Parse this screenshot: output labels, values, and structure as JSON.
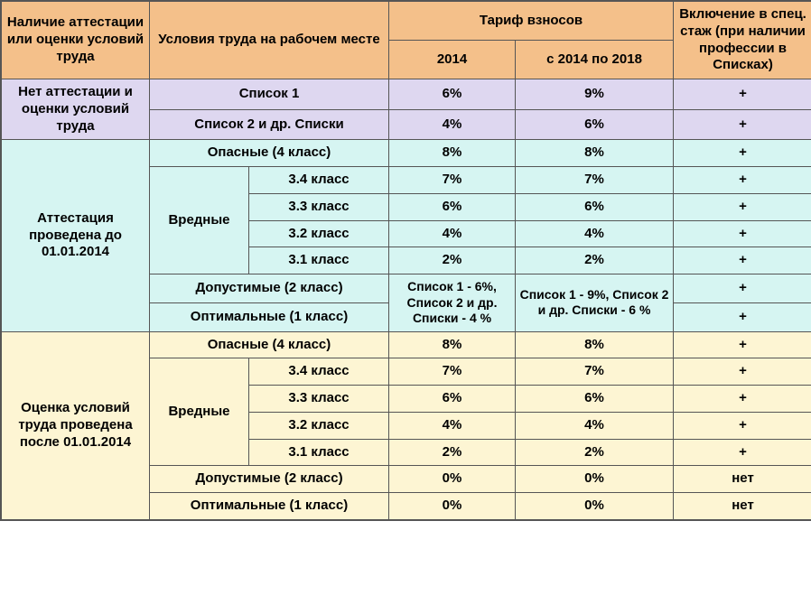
{
  "header": {
    "col1": "Наличие аттестации или оценки условий труда",
    "col2": "Условия труда на рабочем месте",
    "tariff_group": "Тариф взносов",
    "col3": "2014",
    "col4": "с 2014 по 2018",
    "col5": "Включение в спец. стаж (при наличии профессии в Списках)"
  },
  "sec1": {
    "label": "Нет аттестации и оценки условий труда",
    "rows": [
      {
        "cond": "Список 1",
        "t2014": "6%",
        "t2018": "9%",
        "inc": "+"
      },
      {
        "cond": "Список 2 и др. Списки",
        "t2014": "4%",
        "t2018": "6%",
        "inc": "+"
      }
    ]
  },
  "sec2": {
    "label": "Аттестация проведена до 01.01.2014",
    "dangerous": {
      "cond": "Опасные (4 класс)",
      "t2014": "8%",
      "t2018": "8%",
      "inc": "+"
    },
    "harmful_label": "Вредные",
    "harmful": [
      {
        "cls": "3.4 класс",
        "t2014": "7%",
        "t2018": "7%",
        "inc": "+"
      },
      {
        "cls": "3.3 класс",
        "t2014": "6%",
        "t2018": "6%",
        "inc": "+"
      },
      {
        "cls": "3.2 класс",
        "t2014": "4%",
        "t2018": "4%",
        "inc": "+"
      },
      {
        "cls": "3.1 класс",
        "t2014": "2%",
        "t2018": "2%",
        "inc": "+"
      }
    ],
    "acceptable": {
      "cond": "Допустимые (2 класс)",
      "inc": "+"
    },
    "optimal": {
      "cond": "Оптимальные (1 класс)",
      "inc": "+"
    },
    "merged_2014": "Список 1 - 6%, Список 2 и др. Списки - 4 %",
    "merged_2018": "Список 1 - 9%, Список 2 и др. Списки - 6 %"
  },
  "sec3": {
    "label": "Оценка условий труда проведена после 01.01.2014",
    "dangerous": {
      "cond": "Опасные (4 класс)",
      "t2014": "8%",
      "t2018": "8%",
      "inc": "+"
    },
    "harmful_label": "Вредные",
    "harmful": [
      {
        "cls": "3.4 класс",
        "t2014": "7%",
        "t2018": "7%",
        "inc": "+"
      },
      {
        "cls": "3.3 класс",
        "t2014": "6%",
        "t2018": "6%",
        "inc": "+"
      },
      {
        "cls": "3.2 класс",
        "t2014": "4%",
        "t2018": "4%",
        "inc": "+"
      },
      {
        "cls": "3.1 класс",
        "t2014": "2%",
        "t2018": "2%",
        "inc": "+"
      }
    ],
    "acceptable": {
      "cond": "Допустимые (2 класс)",
      "t2014": "0%",
      "t2018": "0%",
      "inc": "нет"
    },
    "optimal": {
      "cond": "Оптимальные (1 класс)",
      "t2014": "0%",
      "t2018": "0%",
      "inc": "нет"
    }
  },
  "colors": {
    "header": "#f4c08a",
    "sec1": "#ded7f0",
    "sec2": "#d6f5f2",
    "sec3": "#fdf5d3",
    "border": "#555555",
    "text": "#000000"
  }
}
